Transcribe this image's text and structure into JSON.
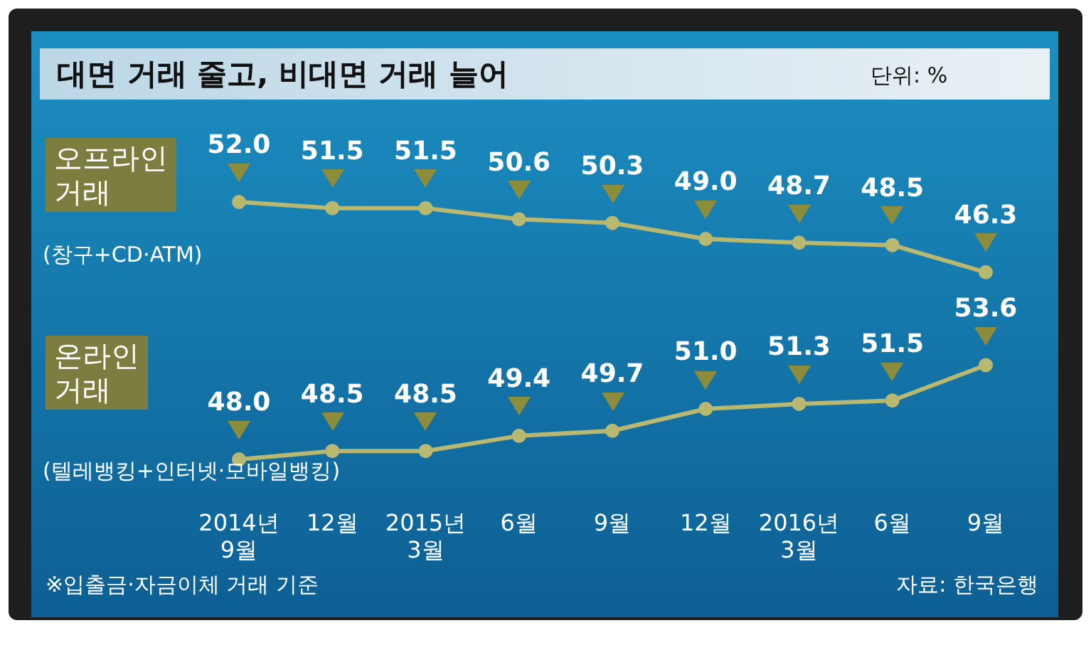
{
  "chart_data": [
    {
      "type": "line",
      "title": "대면 거래 줄고, 비대면 거래 늘어",
      "categories": [
        null,
        null,
        null,
        null,
        null,
        null,
        null,
        null,
        null
      ],
      "series": [
        {
          "name": "오프라인\n거래",
          "color": "#b8b870",
          "values": [
            52.0,
            51.5,
            51.5,
            50.6,
            50.3,
            49.0,
            48.7,
            48.5,
            46.3
          ],
          "value_labels": [
            "52.0",
            "51.5",
            "51.5",
            "50.6",
            "50.3",
            "49.0",
            "48.7",
            "48.5",
            "46.3"
          ]
        }
      ],
      "marker": "circle",
      "tick_labels": false,
      "annotations": [
        "단위: %",
        "(창구+CD·ATM)"
      ]
    },
    {
      "type": "line",
      "categories": [
        "2014년\n9월",
        "12월",
        "2015년\n3월",
        "6월",
        "9월",
        "12월",
        "2016년\n3월",
        "6월",
        "9월"
      ],
      "series": [
        {
          "name": "온라인\n거래",
          "color": "#b8b870",
          "values": [
            48.0,
            48.5,
            48.5,
            49.4,
            49.7,
            51.0,
            51.3,
            51.5,
            53.6
          ],
          "value_labels": [
            "48.0",
            "48.5",
            "48.5",
            "49.4",
            "49.7",
            "51.0",
            "51.3",
            "51.5",
            "53.6"
          ]
        }
      ],
      "marker": "circle",
      "tick_labels": "x",
      "annotations": [
        "(텔레뱅킹+인터넷·모바일뱅킹)",
        "※입출금·자금이체 거래 기준",
        "자료: 한국은행"
      ]
    }
  ]
}
